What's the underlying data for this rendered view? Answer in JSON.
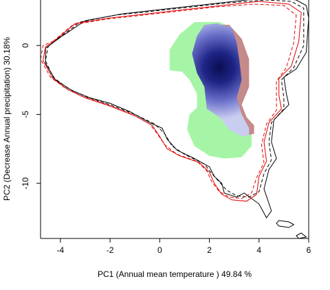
{
  "chart_data": {
    "type": "density-overlap",
    "xlabel": "PC1 (Annual mean temperature ) 49.84 %",
    "ylabel": "PC2 (Decrease Annual precipitation) 30.18%",
    "xlim": [
      -4.8,
      6.0
    ],
    "ylim": [
      -14.0,
      3.3
    ],
    "xticks": [
      -4,
      -2,
      0,
      2,
      4,
      6
    ],
    "yticks": [
      0,
      -5,
      -10
    ],
    "grid": false,
    "legend": "none",
    "colors": {
      "green": "#a6f5a6",
      "red": "#c58a8a",
      "blue_light": "#c9cdf0",
      "blue_mid": "#6a70c9",
      "blue_dark": "#0b0d52",
      "env_red": "#e00000",
      "env_black": "#000000"
    },
    "density_peak": [
      2.4,
      -1.6
    ],
    "regions": {
      "green": [
        [
          1.4,
          1.7
        ],
        [
          2.4,
          1.7
        ],
        [
          2.8,
          1.4
        ],
        [
          3.0,
          0.5
        ],
        [
          2.6,
          -1.0
        ],
        [
          2.3,
          -2.3
        ],
        [
          2.6,
          -3.4
        ],
        [
          3.0,
          -4.2
        ],
        [
          3.5,
          -5.2
        ],
        [
          3.7,
          -6.2
        ],
        [
          3.7,
          -7.3
        ],
        [
          3.3,
          -8.1
        ],
        [
          2.6,
          -8.2
        ],
        [
          2.0,
          -8.0
        ],
        [
          1.4,
          -7.3
        ],
        [
          1.1,
          -6.1
        ],
        [
          1.2,
          -5.0
        ],
        [
          1.5,
          -4.5
        ],
        [
          1.5,
          -3.5
        ],
        [
          1.2,
          -2.5
        ],
        [
          0.9,
          -1.9
        ],
        [
          0.4,
          -1.8
        ],
        [
          0.4,
          -0.3
        ],
        [
          0.8,
          0.8
        ]
      ],
      "red": [
        [
          2.1,
          1.5
        ],
        [
          2.8,
          1.5
        ],
        [
          3.3,
          0.5
        ],
        [
          3.6,
          -1.0
        ],
        [
          3.6,
          -3.0
        ],
        [
          3.3,
          -4.3
        ],
        [
          3.5,
          -5.2
        ],
        [
          3.8,
          -5.8
        ],
        [
          3.8,
          -6.4
        ],
        [
          3.3,
          -6.6
        ],
        [
          3.0,
          -5.8
        ],
        [
          2.7,
          -4.5
        ],
        [
          2.5,
          -2.5
        ],
        [
          2.3,
          -0.5
        ]
      ],
      "blue": [
        [
          1.8,
          1.5
        ],
        [
          2.3,
          1.6
        ],
        [
          2.9,
          1.3
        ],
        [
          3.1,
          0.2
        ],
        [
          3.2,
          -1.0
        ],
        [
          3.3,
          -2.5
        ],
        [
          3.1,
          -3.8
        ],
        [
          3.3,
          -5.0
        ],
        [
          3.6,
          -6.0
        ],
        [
          3.6,
          -6.5
        ],
        [
          3.3,
          -6.6
        ],
        [
          2.8,
          -6.1
        ],
        [
          2.4,
          -5.2
        ],
        [
          1.9,
          -4.6
        ],
        [
          1.8,
          -3.0
        ],
        [
          1.5,
          -2.0
        ],
        [
          1.3,
          -0.6
        ],
        [
          1.5,
          0.7
        ]
      ]
    },
    "envelope_solid_black": [
      [
        -4.0,
        0.6
      ],
      [
        -3.0,
        1.8
      ],
      [
        -1.5,
        2.3
      ],
      [
        0.0,
        2.6
      ],
      [
        1.5,
        2.9
      ],
      [
        3.0,
        3.2
      ],
      [
        4.5,
        3.5
      ],
      [
        5.5,
        3.3
      ],
      [
        5.9,
        2.9
      ],
      [
        6.0,
        2.0
      ],
      [
        5.9,
        -0.5
      ],
      [
        5.5,
        -1.7
      ],
      [
        5.0,
        -2.3
      ],
      [
        5.1,
        -3.5
      ],
      [
        5.2,
        -4.3
      ],
      [
        4.6,
        -5.4
      ],
      [
        4.5,
        -7.0
      ],
      [
        4.7,
        -8.2
      ],
      [
        4.4,
        -9.0
      ],
      [
        4.2,
        -10.4
      ],
      [
        4.5,
        -12.0
      ],
      [
        4.3,
        -12.5
      ],
      [
        4.0,
        -11.5
      ],
      [
        3.4,
        -10.7
      ],
      [
        3.1,
        -11.0
      ],
      [
        2.6,
        -10.7
      ],
      [
        2.5,
        -10.0
      ],
      [
        2.2,
        -9.5
      ],
      [
        2.0,
        -8.8
      ],
      [
        1.4,
        -8.2
      ],
      [
        0.7,
        -7.6
      ],
      [
        0.3,
        -6.8
      ],
      [
        0.1,
        -6.0
      ],
      [
        -0.4,
        -5.6
      ],
      [
        -1.2,
        -4.8
      ],
      [
        -2.0,
        -4.2
      ],
      [
        -2.8,
        -3.8
      ],
      [
        -3.5,
        -3.3
      ],
      [
        -4.2,
        -2.5
      ],
      [
        -4.6,
        -1.3
      ],
      [
        -4.6,
        -0.2
      ]
    ],
    "envelope_solid_red": [
      [
        -4.2,
        0.4
      ],
      [
        -3.4,
        1.6
      ],
      [
        -2.0,
        2.0
      ],
      [
        -0.5,
        2.3
      ],
      [
        1.0,
        2.6
      ],
      [
        2.5,
        2.9
      ],
      [
        4.0,
        3.2
      ],
      [
        5.2,
        3.0
      ],
      [
        5.7,
        2.4
      ],
      [
        5.6,
        0.3
      ],
      [
        5.3,
        -1.5
      ],
      [
        4.8,
        -2.4
      ],
      [
        4.8,
        -3.6
      ],
      [
        4.9,
        -4.6
      ],
      [
        4.4,
        -5.6
      ],
      [
        4.2,
        -7.0
      ],
      [
        4.3,
        -8.4
      ],
      [
        4.0,
        -9.5
      ],
      [
        3.9,
        -10.8
      ],
      [
        3.5,
        -11.3
      ],
      [
        2.9,
        -11.2
      ],
      [
        2.5,
        -10.8
      ],
      [
        2.2,
        -10.0
      ],
      [
        2.0,
        -9.2
      ],
      [
        1.6,
        -8.5
      ],
      [
        0.8,
        -8.0
      ],
      [
        0.3,
        -7.5
      ],
      [
        0.0,
        -6.6
      ],
      [
        -0.3,
        -5.8
      ],
      [
        -1.0,
        -5.1
      ],
      [
        -2.0,
        -4.4
      ],
      [
        -3.0,
        -3.8
      ],
      [
        -3.7,
        -3.2
      ],
      [
        -4.3,
        -2.4
      ],
      [
        -4.7,
        -1.1
      ],
      [
        -4.6,
        -0.1
      ]
    ],
    "envelope_dashed_black": [
      [
        -4.1,
        0.5
      ],
      [
        -3.2,
        1.7
      ],
      [
        -1.8,
        2.2
      ],
      [
        -0.2,
        2.5
      ],
      [
        1.3,
        2.8
      ],
      [
        2.8,
        3.1
      ],
      [
        4.3,
        3.3
      ],
      [
        5.3,
        3.2
      ],
      [
        5.8,
        2.7
      ],
      [
        5.8,
        0.0
      ],
      [
        5.4,
        -1.6
      ],
      [
        4.9,
        -2.5
      ],
      [
        5.0,
        -3.8
      ],
      [
        5.0,
        -4.6
      ],
      [
        4.5,
        -5.6
      ],
      [
        4.4,
        -7.0
      ],
      [
        4.5,
        -8.3
      ],
      [
        4.2,
        -9.3
      ],
      [
        4.0,
        -10.6
      ],
      [
        3.6,
        -11.0
      ],
      [
        3.1,
        -10.9
      ],
      [
        2.7,
        -10.5
      ],
      [
        2.4,
        -9.9
      ],
      [
        2.1,
        -9.3
      ],
      [
        1.8,
        -8.6
      ],
      [
        1.0,
        -7.9
      ],
      [
        0.5,
        -7.3
      ],
      [
        0.2,
        -6.4
      ],
      [
        -0.2,
        -5.7
      ],
      [
        -1.0,
        -5.0
      ],
      [
        -2.0,
        -4.3
      ],
      [
        -3.0,
        -3.7
      ],
      [
        -3.7,
        -3.1
      ],
      [
        -4.3,
        -2.3
      ],
      [
        -4.6,
        -1.1
      ],
      [
        -4.5,
        -0.1
      ]
    ],
    "envelope_dashed_red": [
      [
        -4.3,
        0.3
      ],
      [
        -3.5,
        1.5
      ],
      [
        -2.2,
        1.9
      ],
      [
        -0.7,
        2.2
      ],
      [
        0.8,
        2.5
      ],
      [
        2.3,
        2.8
      ],
      [
        3.8,
        3.0
      ],
      [
        5.0,
        2.9
      ],
      [
        5.5,
        2.2
      ],
      [
        5.4,
        0.2
      ],
      [
        5.1,
        -1.6
      ],
      [
        4.7,
        -2.6
      ],
      [
        4.7,
        -3.8
      ],
      [
        4.7,
        -4.7
      ],
      [
        4.3,
        -5.7
      ],
      [
        4.1,
        -7.2
      ],
      [
        4.2,
        -8.5
      ],
      [
        3.9,
        -9.6
      ],
      [
        3.7,
        -10.7
      ],
      [
        3.3,
        -11.1
      ],
      [
        2.8,
        -11.0
      ],
      [
        2.4,
        -10.6
      ],
      [
        2.1,
        -9.9
      ],
      [
        1.9,
        -9.1
      ],
      [
        1.5,
        -8.4
      ],
      [
        0.7,
        -7.9
      ],
      [
        0.2,
        -7.2
      ],
      [
        -0.1,
        -6.4
      ],
      [
        -0.4,
        -5.7
      ],
      [
        -1.1,
        -5.0
      ],
      [
        -2.1,
        -4.3
      ],
      [
        -3.1,
        -3.7
      ],
      [
        -3.8,
        -3.1
      ],
      [
        -4.4,
        -2.3
      ],
      [
        -4.8,
        -1.0
      ],
      [
        -4.7,
        0.0
      ]
    ],
    "islands": [
      [
        [
          4.8,
          -12.7
        ],
        [
          5.2,
          -12.8
        ],
        [
          5.4,
          -13.0
        ],
        [
          5.2,
          -13.2
        ],
        [
          4.8,
          -13.1
        ],
        [
          4.7,
          -12.9
        ]
      ],
      [
        [
          5.5,
          -13.8
        ],
        [
          5.7,
          -13.6
        ],
        [
          5.9,
          -13.9
        ],
        [
          5.6,
          -14.0
        ]
      ]
    ]
  }
}
